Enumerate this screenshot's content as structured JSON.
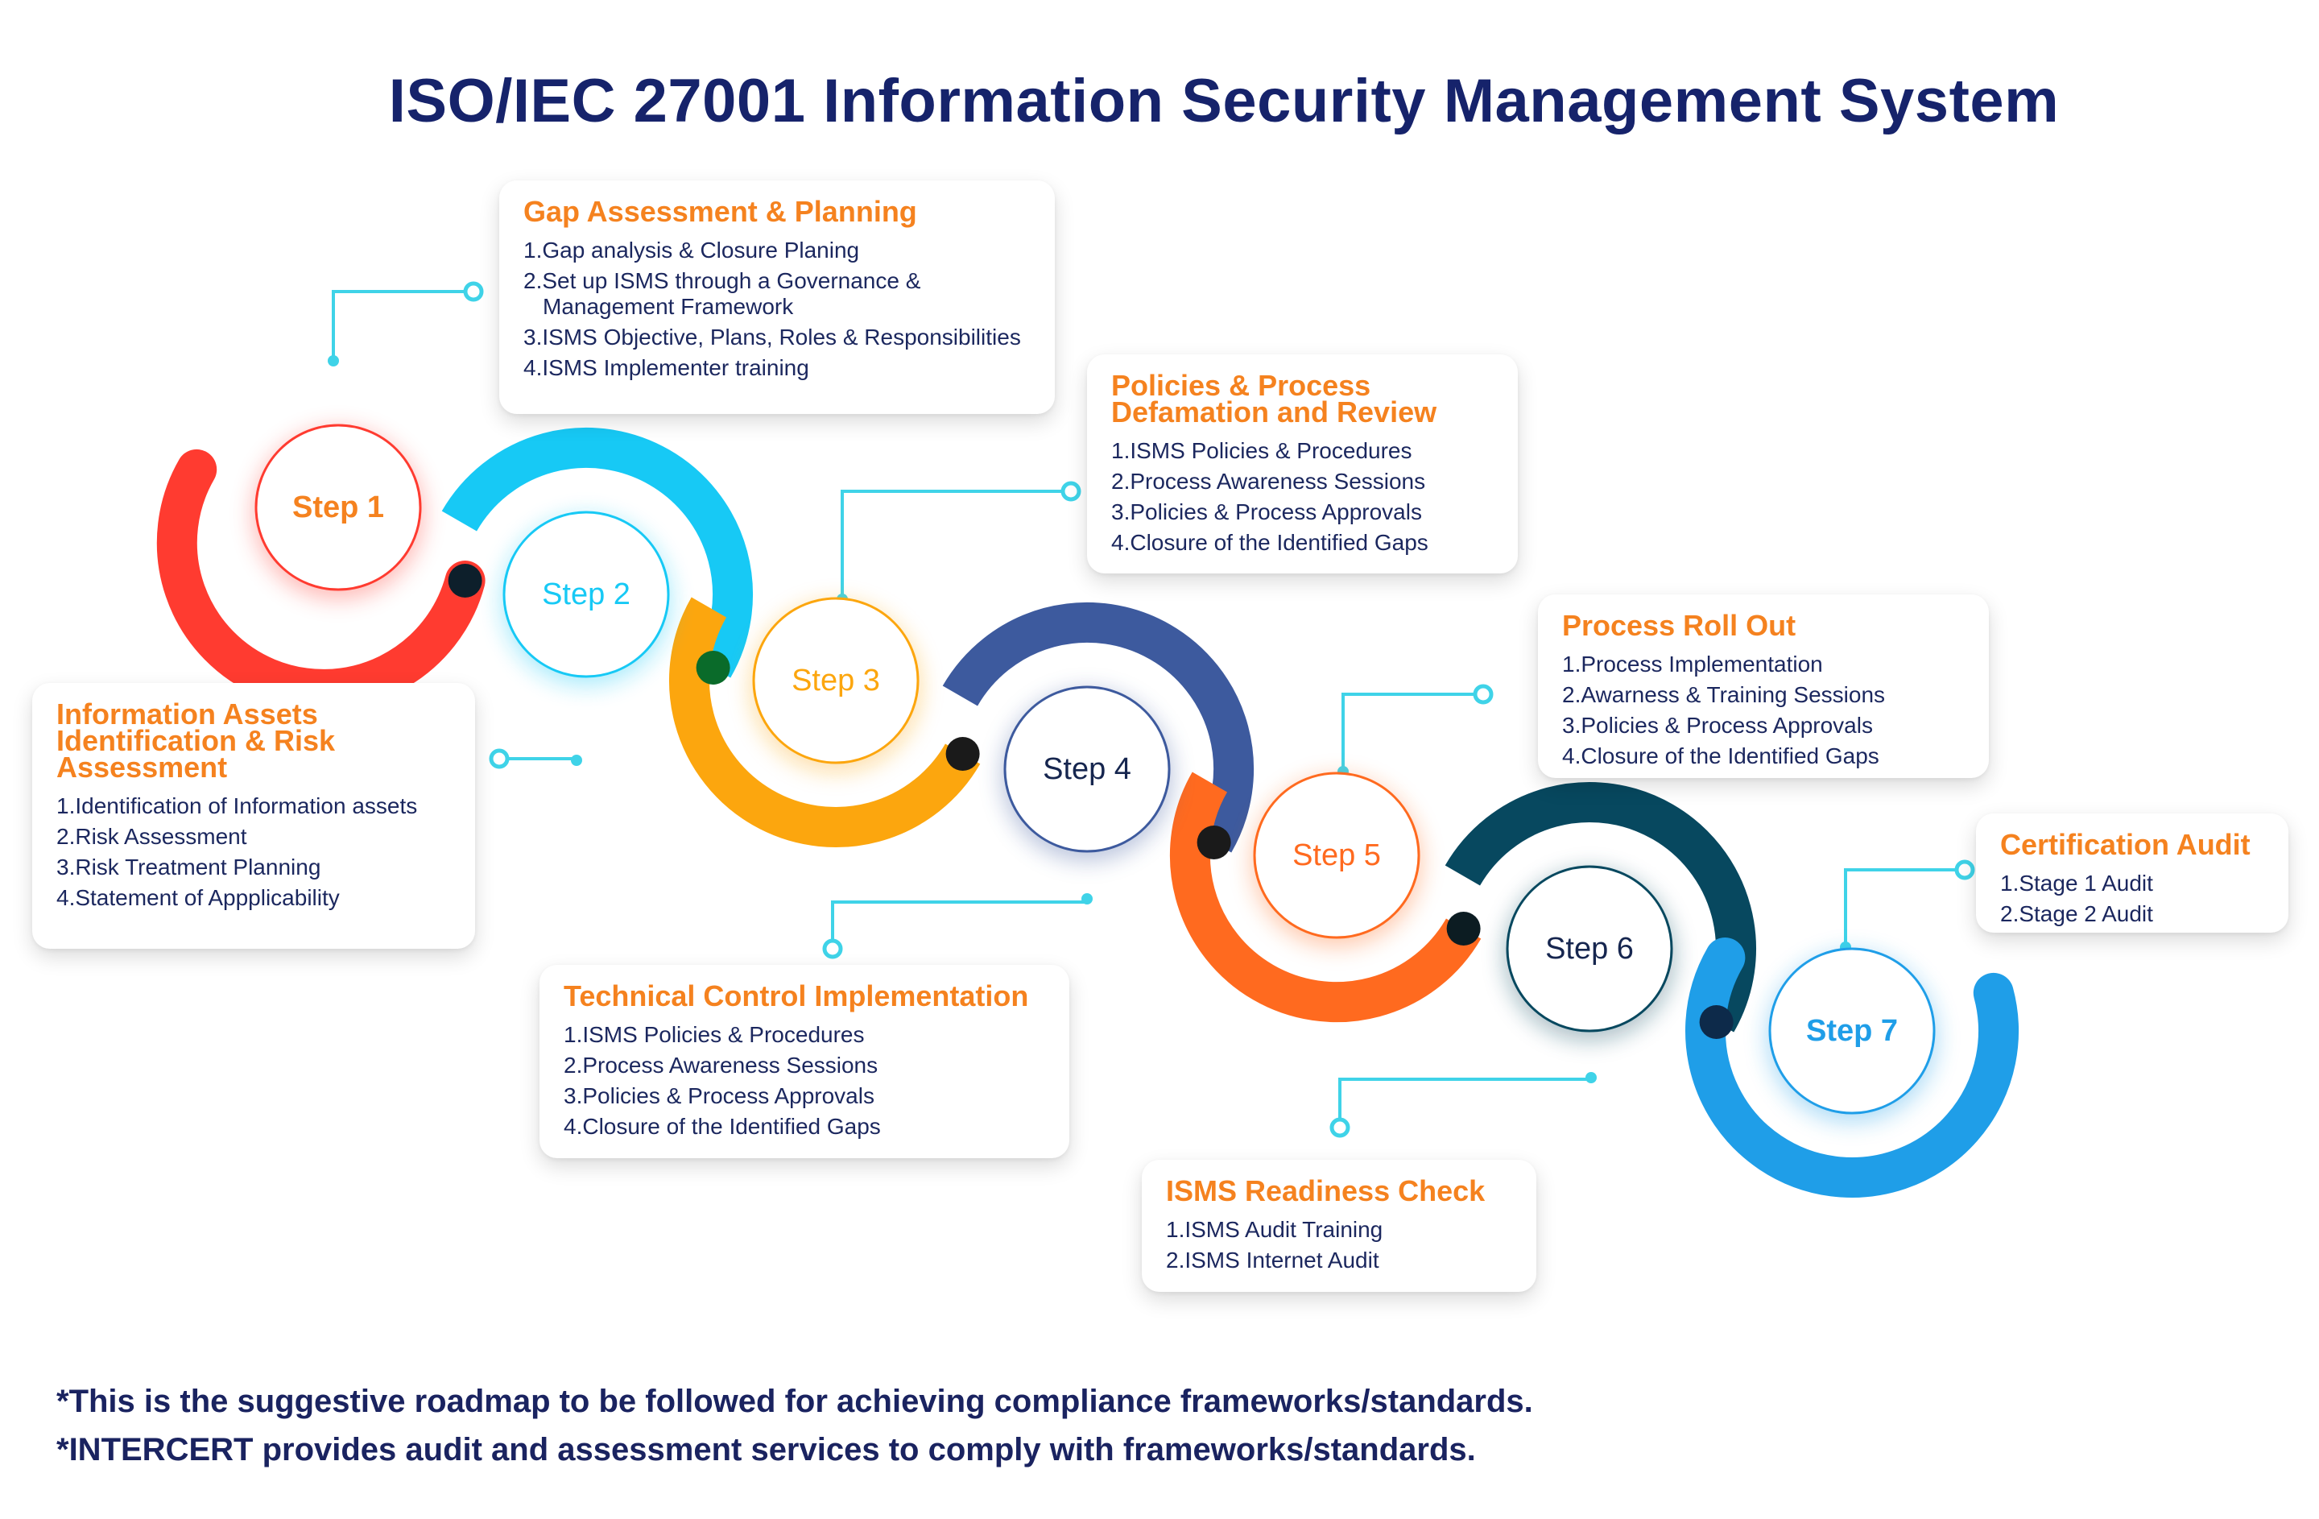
{
  "title": "ISO/IEC 27001 Information Security Management System",
  "steps": [
    {
      "label": "Step 1",
      "color": "#ff3b30",
      "text_color": "#f5821f"
    },
    {
      "label": "Step 2",
      "color": "#17c9f5",
      "text_color": "#17c9f5"
    },
    {
      "label": "Step 3",
      "color": "#fca60e",
      "text_color": "#fca60e"
    },
    {
      "label": "Step 4",
      "color": "#3d5a9e",
      "text_color": "#16264f"
    },
    {
      "label": "Step 5",
      "color": "#ff6a1f",
      "text_color": "#ff6a1f"
    },
    {
      "label": "Step 6",
      "color": "#07485f",
      "text_color": "#16264f"
    },
    {
      "label": "Step 7",
      "color": "#1f9ee8",
      "text_color": "#1f9ee8"
    }
  ],
  "cards": [
    {
      "title": "Gap Assessment & Planning",
      "items": [
        "1.Gap analysis & Closure Planing",
        "2.Set up ISMS through a Governance & Management Framework",
        "3.ISMS Objective, Plans, Roles & Responsibilities",
        "4.ISMS Implementer training"
      ]
    },
    {
      "title": "Information Assets Identification & Risk Assessment",
      "items": [
        "1.Identification of Information assets",
        "2.Risk Assessment",
        "3.Risk Treatment Planning",
        "4.Statement of Appplicability"
      ]
    },
    {
      "title": "Policies & Process Defamation and Review",
      "items": [
        "1.ISMS Policies & Procedures",
        "2.Process Awareness Sessions",
        "3.Policies & Process Approvals",
        "4.Closure of the Identified Gaps"
      ]
    },
    {
      "title": "Technical Control Implementation",
      "items": [
        "1.ISMS Policies & Procedures",
        "2.Process Awareness Sessions",
        "3.Policies & Process Approvals",
        "4.Closure of the Identified Gaps"
      ]
    },
    {
      "title": "Process Roll Out",
      "items": [
        "1.Process Implementation",
        "2.Awarness & Training Sessions",
        "3.Policies & Process Approvals",
        "4.Closure of the Identified Gaps"
      ]
    },
    {
      "title": "ISMS Readiness Check",
      "items": [
        "1.ISMS Audit Training",
        "2.ISMS Internet Audit"
      ]
    },
    {
      "title": "Certification Audit",
      "items": [
        "1.Stage 1 Audit",
        "2.Stage 2 Audit"
      ]
    }
  ],
  "footnotes": [
    "*This is the suggestive roadmap to be followed for achieving compliance frameworks/standards.",
    "*INTERCERT provides audit and assessment services to comply with frameworks/standards."
  ],
  "connector_color": "#3fd3e8",
  "joint_colors": [
    "#0d1f2b",
    "#0a6b2a",
    "#1a1a1a",
    "#1a1a1a",
    "#0c1c22",
    "#0d2a4a"
  ]
}
